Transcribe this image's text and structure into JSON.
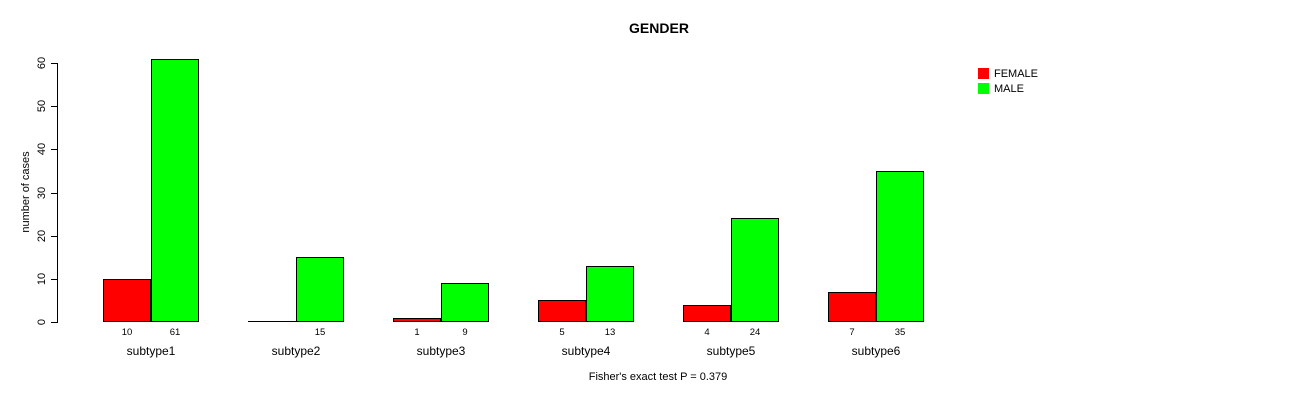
{
  "title": "GENDER",
  "y_axis": {
    "label": "number of cases",
    "ticks": [
      0,
      10,
      20,
      30,
      40,
      50,
      60
    ]
  },
  "footnote": "Fisher's exact test P = 0.379",
  "legend": {
    "position": "top-right",
    "entries": [
      {
        "label": "FEMALE",
        "color": "#ff0000"
      },
      {
        "label": "MALE",
        "color": "#00ff00"
      }
    ]
  },
  "chart_data": {
    "type": "bar",
    "title": "GENDER",
    "categories": [
      "subtype1",
      "subtype2",
      "subtype3",
      "subtype4",
      "subtype5",
      "subtype6"
    ],
    "series": [
      {
        "name": "FEMALE",
        "color": "#ff0000",
        "values": [
          10,
          0,
          1,
          5,
          4,
          7
        ]
      },
      {
        "name": "MALE",
        "color": "#00ff00",
        "values": [
          61,
          15,
          9,
          13,
          24,
          35
        ]
      }
    ],
    "xlabel": "",
    "ylabel": "number of cases",
    "ylim": [
      0,
      60
    ],
    "yticks": [
      0,
      10,
      20,
      30,
      40,
      50,
      60
    ],
    "grid": false,
    "legend_position": "top-right",
    "bar_value_labels": true,
    "zero_value_label_hidden": true,
    "annotation": "Fisher's exact test P = 0.379"
  }
}
